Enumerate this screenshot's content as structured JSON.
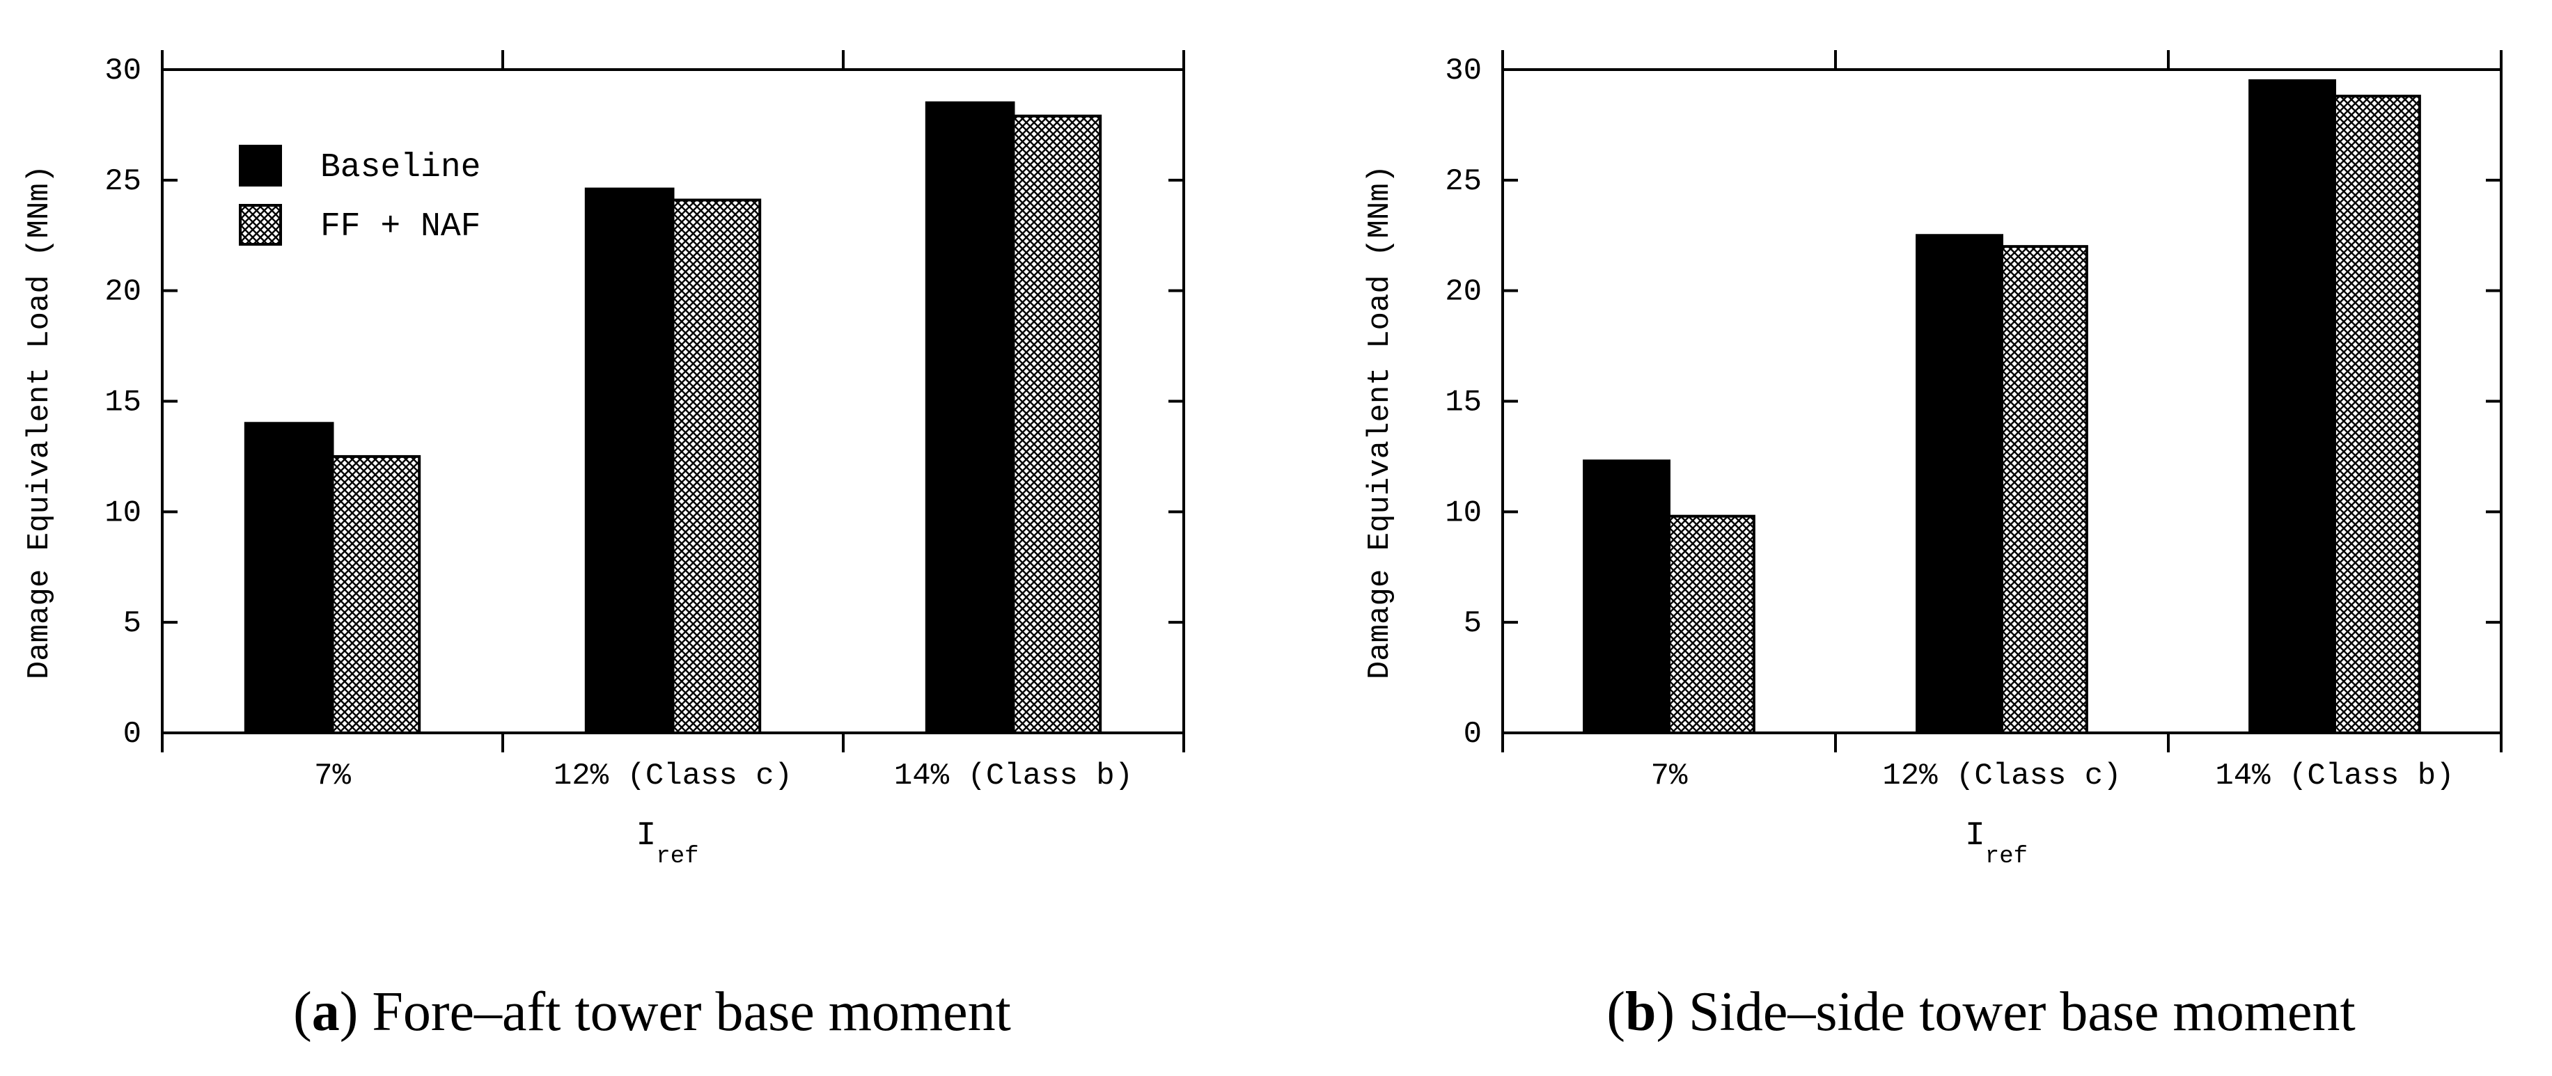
{
  "chart_data": [
    {
      "type": "bar",
      "panel_label": "a",
      "caption": "Fore–aft tower base moment",
      "ylabel": "Damage Equivalent Load (MNm)",
      "xlabel_main": "I",
      "xlabel_sub": "ref",
      "categories": [
        "7%",
        "12% (Class c)",
        "14% (Class b)"
      ],
      "ylim": [
        0,
        30
      ],
      "yticks": [
        "0",
        "5",
        "10",
        "15",
        "20",
        "25",
        "30"
      ],
      "legend_position": "top-left",
      "series": [
        {
          "name": "Baseline",
          "values": [
            14.0,
            24.6,
            28.5
          ],
          "fill": "solid",
          "color": "#000000"
        },
        {
          "name": "FF + NAF",
          "values": [
            12.5,
            24.1,
            27.9
          ],
          "fill": "crosshatch",
          "color": "#000000"
        }
      ]
    },
    {
      "type": "bar",
      "panel_label": "b",
      "caption": "Side–side tower base moment",
      "ylabel": "Damage Equivalent Load (MNm)",
      "xlabel_main": "I",
      "xlabel_sub": "ref",
      "categories": [
        "7%",
        "12% (Class c)",
        "14% (Class b)"
      ],
      "ylim": [
        0,
        30
      ],
      "yticks": [
        "0",
        "5",
        "10",
        "15",
        "20",
        "25",
        "30"
      ],
      "series": [
        {
          "name": "Baseline",
          "values": [
            12.3,
            22.5,
            29.5
          ],
          "fill": "solid",
          "color": "#000000"
        },
        {
          "name": "FF + NAF",
          "values": [
            9.8,
            22.0,
            28.8
          ],
          "fill": "crosshatch",
          "color": "#000000"
        }
      ]
    }
  ]
}
